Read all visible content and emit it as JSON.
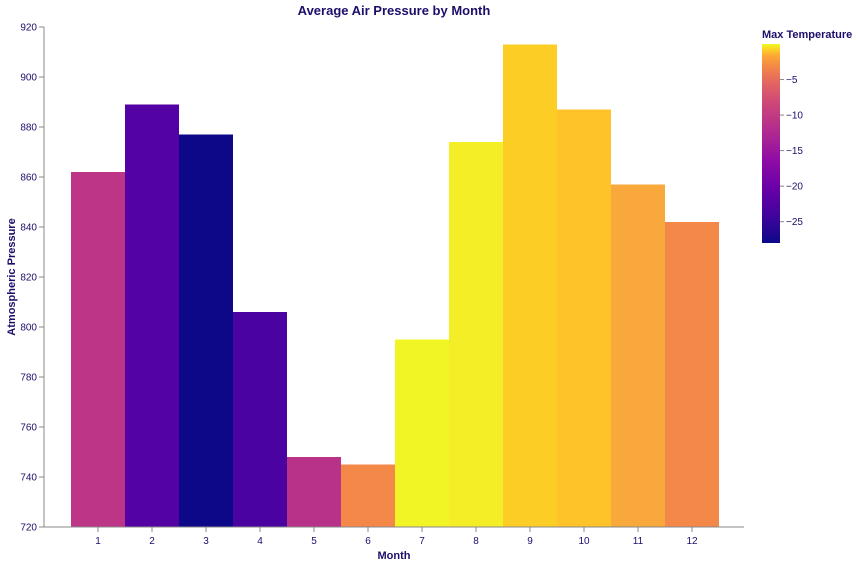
{
  "chart_data": {
    "type": "bar",
    "title": "Average Air Pressure by Month",
    "xlabel": "Month",
    "ylabel": "Atmospheric Pressure",
    "categories": [
      "1",
      "2",
      "3",
      "4",
      "5",
      "6",
      "7",
      "8",
      "9",
      "10",
      "11",
      "12"
    ],
    "values": [
      862,
      889,
      877,
      806,
      748,
      745,
      795,
      874,
      913,
      887,
      857,
      842
    ],
    "ylim": [
      720,
      920
    ],
    "yticks": [
      720,
      740,
      760,
      780,
      800,
      820,
      840,
      860,
      880,
      900,
      920
    ],
    "color_encoding": {
      "title": "Max Temperature",
      "colorscale": "plasma",
      "domain": [
        -28,
        0
      ],
      "ticks": [
        -5,
        -10,
        -15,
        -20,
        -25
      ],
      "tick_labels": [
        "−5",
        "−10",
        "−15",
        "−20",
        "−25"
      ]
    },
    "bar_colors": [
      "#bc3587",
      "#5302a3",
      "#0d0887",
      "#4a02a0",
      "#b93289",
      "#f48849",
      "#f1f525",
      "#f4ee27",
      "#fcce25",
      "#fdc328",
      "#f9a93c",
      "#f48849"
    ],
    "grid": false,
    "legend_position": "right"
  }
}
